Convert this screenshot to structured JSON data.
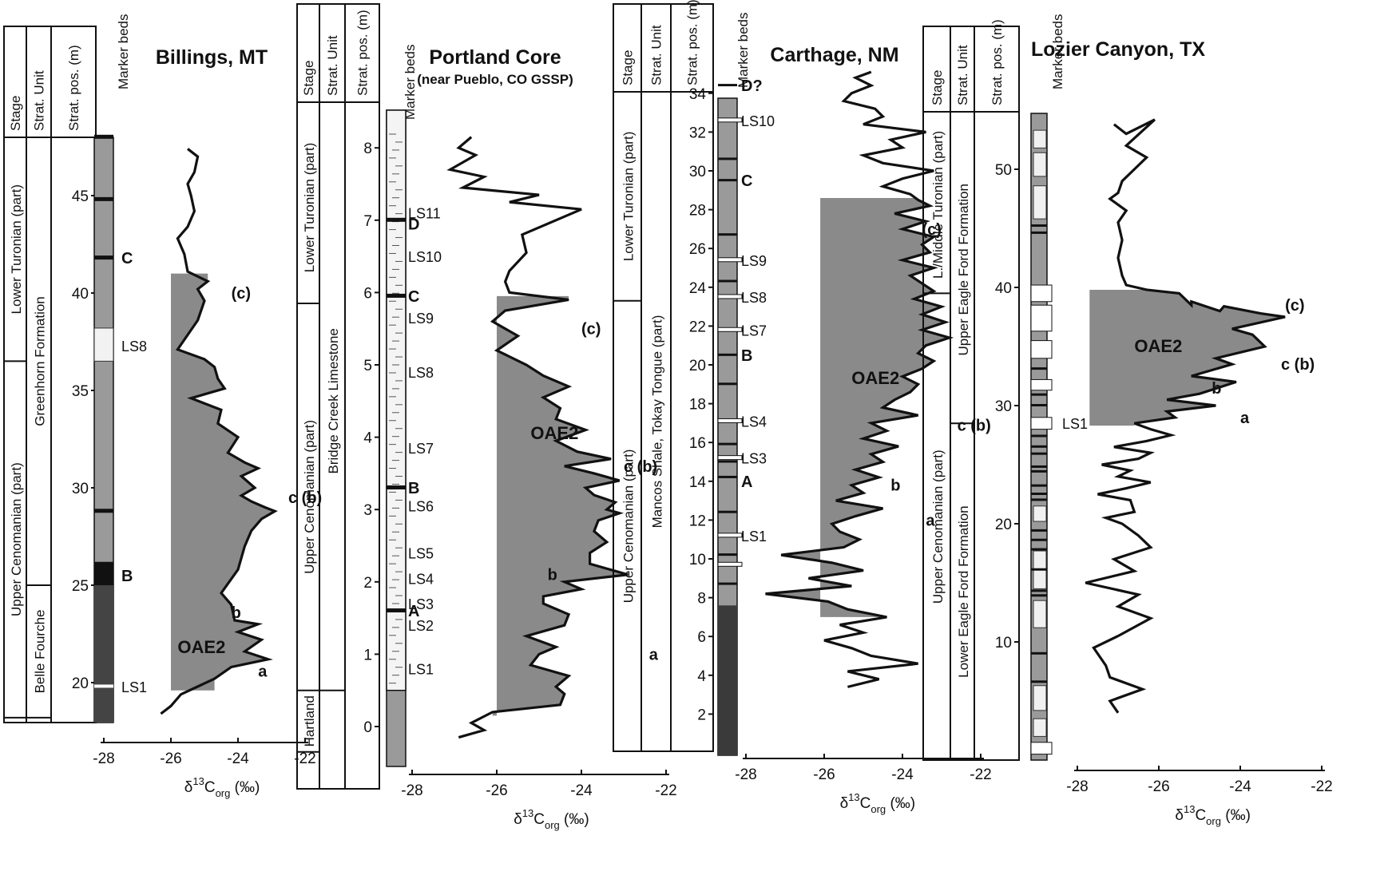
{
  "labels": {
    "stage": "Stage",
    "strat_unit": "Strat. Unit",
    "strat_pos": "Strat. pos. (m)",
    "marker_beds": "Marker beds",
    "xlabel_delta": "δ",
    "xlabel_sup": "13",
    "xlabel_c": "C",
    "xlabel_sub": "org",
    "xlabel_unit": " (‰)"
  },
  "chart_data": [
    {
      "type": "line",
      "title": "Billings, MT",
      "subtitle": "",
      "xlim": [
        -28,
        -22
      ],
      "xticks": [
        "-28",
        "-26",
        "-24",
        "-22"
      ],
      "ylim": [
        18.2,
        48.2
      ],
      "yticks": [
        "20",
        "25",
        "30",
        "35",
        "40",
        "45"
      ],
      "stages": [
        {
          "label": "Lower Turonian (part)",
          "from": 36.5,
          "to": 48.2
        },
        {
          "label": "Upper Cenomanian (part)",
          "from": 18.2,
          "to": 36.5
        }
      ],
      "units": [
        {
          "label": "Greenhorn Formation",
          "from": 25.0,
          "to": 48.2
        },
        {
          "label": "Belle Fourche",
          "from": 18.2,
          "to": 25.0
        }
      ],
      "markers": [
        {
          "label": "C",
          "y": 41.8,
          "bold": true
        },
        {
          "label": "LS8",
          "y": 37.3,
          "bold": false
        },
        {
          "label": "B",
          "y": 25.5,
          "bold": true
        },
        {
          "label": "LS1",
          "y": 19.8,
          "bold": false
        }
      ],
      "annotations": [
        {
          "label": "(c)",
          "x": -24.2,
          "y": 40.0
        },
        {
          "label": "c (b)",
          "x": -22.5,
          "y": 29.5
        },
        {
          "label": "b",
          "x": -24.2,
          "y": 23.6
        },
        {
          "label": "a",
          "x": -23.4,
          "y": 20.6
        },
        {
          "label": "OAE2",
          "x": -25.8,
          "y": 21.8
        }
      ],
      "oae2_fill": [
        19.6,
        41.0
      ],
      "x": [
        -25.5,
        -25.2,
        -25.3,
        -25.5,
        -25.4,
        -25.3,
        -25.5,
        -25.8,
        -25.6,
        -25.5,
        -24.9,
        -25.2,
        -25.0,
        -25.2,
        -25.8,
        -25.0,
        -24.7,
        -24.6,
        -24.4,
        -25.4,
        -24.5,
        -24.6,
        -24.0,
        -24.3,
        -23.8,
        -23.4,
        -23.9,
        -23.5,
        -23.9,
        -23.6,
        -23.2,
        -22.9,
        -23.3,
        -23.6,
        -23.8,
        -24.0,
        -24.5,
        -24.2,
        -24.1,
        -23.4,
        -24.0,
        -23.3,
        -23.8,
        -23.1,
        -24.2,
        -24.7,
        -25.7,
        -26.0,
        -26.3
      ],
      "y": [
        47.4,
        47.0,
        46.2,
        45.6,
        45.0,
        44.2,
        43.4,
        42.8,
        42.0,
        41.1,
        40.6,
        40.2,
        39.6,
        38.6,
        37.1,
        36.6,
        36.2,
        35.6,
        35.1,
        34.6,
        34.0,
        33.3,
        32.6,
        31.8,
        31.3,
        31.0,
        30.6,
        30.0,
        29.6,
        29.3,
        29.0,
        28.8,
        28.4,
        27.8,
        27.0,
        25.8,
        24.6,
        24.0,
        23.2,
        23.0,
        22.6,
        22.2,
        21.6,
        21.2,
        20.8,
        20.2,
        19.4,
        18.8,
        18.4
      ]
    },
    {
      "type": "line",
      "title": "Portland Core",
      "subtitle": "(near Pueblo, CO GSSP)",
      "xlim": [
        -28,
        -22
      ],
      "xticks": [
        "-28",
        "-26",
        "-24",
        "-22"
      ],
      "ylim": [
        -0.35,
        8.5
      ],
      "yticks": [
        "0",
        "1",
        "2",
        "3",
        "4",
        "5",
        "6",
        "7",
        "8"
      ],
      "stages": [
        {
          "label": "Lower Turonian (part)",
          "from": 5.85,
          "to": 8.5
        },
        {
          "label": "Upper Cenomanian (part)",
          "from": 0.5,
          "to": 5.85
        },
        {
          "label": "Hartland",
          "from": -0.35,
          "to": 0.5
        }
      ],
      "units": [
        {
          "label": "Bridge Creek Limestone",
          "from": 0.5,
          "to": 8.5
        }
      ],
      "markers": [
        {
          "label": "LS11",
          "y": 7.1,
          "bold": false
        },
        {
          "label": "D",
          "y": 6.95,
          "bold": true
        },
        {
          "label": "LS10",
          "y": 6.5,
          "bold": false
        },
        {
          "label": "C",
          "y": 5.95,
          "bold": true
        },
        {
          "label": "LS9",
          "y": 5.65,
          "bold": false
        },
        {
          "label": "LS8",
          "y": 4.9,
          "bold": false
        },
        {
          "label": "LS7",
          "y": 3.85,
          "bold": false
        },
        {
          "label": "B",
          "y": 3.3,
          "bold": true
        },
        {
          "label": "LS6",
          "y": 3.05,
          "bold": false
        },
        {
          "label": "LS5",
          "y": 2.4,
          "bold": false
        },
        {
          "label": "LS4",
          "y": 2.05,
          "bold": false
        },
        {
          "label": "LS3",
          "y": 1.7,
          "bold": false
        },
        {
          "label": "A",
          "y": 1.6,
          "bold": true
        },
        {
          "label": "LS2",
          "y": 1.4,
          "bold": false
        },
        {
          "label": "LS1",
          "y": 0.8,
          "bold": false
        }
      ],
      "annotations": [
        {
          "label": "(c)",
          "x": -24.0,
          "y": 5.5
        },
        {
          "label": "c (b)",
          "x": -23.0,
          "y": 3.6
        },
        {
          "label": "b",
          "x": -24.8,
          "y": 2.1
        },
        {
          "label": "a",
          "x": -22.4,
          "y": 1.0
        },
        {
          "label": "OAE2",
          "x": -25.2,
          "y": 4.05
        }
      ],
      "oae2_fill": [
        0.15,
        5.95
      ],
      "x": [
        -26.6,
        -26.9,
        -26.5,
        -27.1,
        -26.3,
        -26.8,
        -25.0,
        -25.7,
        -24.0,
        -25.4,
        -25.3,
        -25.7,
        -25.8,
        -25.7,
        -24.3,
        -25.8,
        -26.1,
        -25.5,
        -26.0,
        -25.3,
        -24.9,
        -24.3,
        -24.9,
        -24.5,
        -24.6,
        -23.9,
        -24.6,
        -24.1,
        -23.3,
        -24.4,
        -23.7,
        -23.1,
        -23.9,
        -23.7,
        -23.2,
        -23.4,
        -23.1,
        -23.6,
        -23.7,
        -23.4,
        -23.8,
        -23.8,
        -22.9,
        -24.4,
        -24.0,
        -24.9,
        -24.9,
        -24.3,
        -24.4,
        -25.3,
        -24.6,
        -25.0,
        -25.2,
        -24.3,
        -24.6,
        -24.4,
        -24.5,
        -26.1,
        -26.6,
        -26.3,
        -26.9
      ],
      "y": [
        8.15,
        8.0,
        7.9,
        7.7,
        7.6,
        7.45,
        7.35,
        7.25,
        7.15,
        6.8,
        6.55,
        6.3,
        6.15,
        6.0,
        5.9,
        5.75,
        5.6,
        5.4,
        5.2,
        5.0,
        4.85,
        4.7,
        4.55,
        4.4,
        4.25,
        4.1,
        3.95,
        3.8,
        3.7,
        3.6,
        3.5,
        3.4,
        3.3,
        3.2,
        3.1,
        3.0,
        2.95,
        2.85,
        2.7,
        2.55,
        2.4,
        2.25,
        2.1,
        2.0,
        1.9,
        1.8,
        1.7,
        1.55,
        1.4,
        1.25,
        1.1,
        1.0,
        0.85,
        0.7,
        0.55,
        0.45,
        0.3,
        0.2,
        0.05,
        -0.05,
        -0.15
      ]
    },
    {
      "type": "line",
      "title": "Carthage, NM",
      "subtitle": "",
      "xlim": [
        -28,
        -22
      ],
      "xticks": [
        "-28",
        "-26",
        "-24",
        "-22"
      ],
      "ylim": [
        0.0,
        35.5
      ],
      "yticks": [
        "2",
        "4",
        "6",
        "8",
        "10",
        "12",
        "14",
        "16",
        "18",
        "20",
        "22",
        "24",
        "26",
        "28",
        "30",
        "32",
        "34"
      ],
      "stages": [
        {
          "label": "Lower Turonian (part)",
          "from": 23.3,
          "to": 35.5
        },
        {
          "label": "Upper Cenomanian (part)",
          "from": 0.0,
          "to": 23.3
        }
      ],
      "units": [
        {
          "label": "Mancos Shale, Tokay Tongue (part)",
          "from": 0.0,
          "to": 35.5
        }
      ],
      "markers": [
        {
          "label": "D?",
          "y": 34.4,
          "bold": true
        },
        {
          "label": "LS10",
          "y": 32.6,
          "bold": false
        },
        {
          "label": "C",
          "y": 29.5,
          "bold": true
        },
        {
          "label": "LS9",
          "y": 25.4,
          "bold": false
        },
        {
          "label": "LS8",
          "y": 23.5,
          "bold": false
        },
        {
          "label": "LS7",
          "y": 21.8,
          "bold": false
        },
        {
          "label": "B",
          "y": 20.5,
          "bold": true
        },
        {
          "label": "LS4",
          "y": 17.1,
          "bold": false
        },
        {
          "label": "LS3",
          "y": 15.2,
          "bold": false
        },
        {
          "label": "A",
          "y": 14.0,
          "bold": true
        },
        {
          "label": "LS1",
          "y": 11.2,
          "bold": false
        }
      ],
      "annotations": [
        {
          "label": "(c)",
          "x": -23.5,
          "y": 27.0
        },
        {
          "label": "c (b)",
          "x": -22.6,
          "y": 16.9
        },
        {
          "label": "b",
          "x": -24.3,
          "y": 13.8
        },
        {
          "label": "a",
          "x": -23.4,
          "y": 12.0
        },
        {
          "label": "OAE2",
          "x": -25.3,
          "y": 19.3
        }
      ],
      "oae2_fill": [
        7.0,
        28.6
      ],
      "x": [
        -24.8,
        -25.2,
        -24.8,
        -25.3,
        -25.5,
        -24.7,
        -24.5,
        -25.0,
        -23.4,
        -24.3,
        -24.0,
        -25.0,
        -24.5,
        -23.2,
        -24.0,
        -24.5,
        -23.8,
        -23.6,
        -23.3,
        -24.2,
        -23.4,
        -24.0,
        -23.2,
        -23.5,
        -23.3,
        -24.0,
        -23.2,
        -23.8,
        -23.5,
        -23.2,
        -23.7,
        -23.0,
        -23.5,
        -22.9,
        -23.5,
        -22.8,
        -23.4,
        -23.6,
        -23.2,
        -23.5,
        -24.0,
        -23.6,
        -23.8,
        -24.2,
        -24.5,
        -23.6,
        -24.8,
        -24.4,
        -25.0,
        -24.1,
        -24.8,
        -24.5,
        -25.2,
        -24.6,
        -25.3,
        -25.0,
        -25.7,
        -24.5,
        -25.2,
        -25.8,
        -25.6,
        -25.1,
        -25.5,
        -27.1,
        -25.8,
        -25.0,
        -26.4,
        -25.3,
        -27.5,
        -25.9,
        -25.4,
        -24.4,
        -25.6,
        -25.0,
        -26.0,
        -25.3,
        -24.8,
        -23.6,
        -25.4,
        -24.6,
        -25.4
      ],
      "y": [
        35.1,
        34.8,
        34.4,
        34.0,
        33.6,
        33.2,
        32.8,
        32.4,
        32.0,
        31.6,
        31.2,
        30.8,
        30.4,
        30.0,
        29.6,
        29.2,
        28.8,
        28.5,
        28.2,
        27.8,
        27.4,
        27.0,
        26.6,
        26.2,
        25.8,
        25.4,
        25.0,
        24.6,
        24.2,
        23.8,
        23.4,
        23.0,
        22.6,
        22.2,
        21.8,
        21.4,
        21.0,
        20.6,
        20.2,
        19.8,
        19.4,
        19.0,
        18.6,
        18.2,
        17.8,
        17.4,
        17.0,
        16.6,
        16.2,
        15.8,
        15.4,
        15.0,
        14.6,
        14.2,
        13.8,
        13.4,
        13.0,
        12.6,
        12.2,
        11.8,
        11.4,
        11.0,
        10.6,
        10.2,
        9.8,
        9.4,
        9.0,
        8.6,
        8.2,
        7.8,
        7.4,
        7.0,
        6.6,
        6.2,
        5.8,
        5.4,
        5.0,
        4.6,
        4.2,
        3.8,
        3.4
      ]
    },
    {
      "type": "line",
      "title": "Lozier Canyon, TX",
      "subtitle": "",
      "xlim": [
        -28,
        -22
      ],
      "xticks": [
        "-28",
        "-26",
        "-24",
        "-22"
      ],
      "ylim": [
        0.0,
        54.5
      ],
      "yticks": [
        "10",
        "20",
        "30",
        "40",
        "50"
      ],
      "stages": [
        {
          "label": "L./Middle Turonian (part)",
          "from": 39.5,
          "to": 54.5
        },
        {
          "label": "Upper Cenomanian (part)",
          "from": 0.0,
          "to": 39.5
        }
      ],
      "units": [
        {
          "label": "Upper Eagle Ford Formation",
          "from": 28.5,
          "to": 54.5
        },
        {
          "label": "Lower Eagle Ford Formation",
          "from": 0.0,
          "to": 28.5
        }
      ],
      "markers": [
        {
          "label": "LS1",
          "y": 28.5,
          "bold": false
        }
      ],
      "annotations": [
        {
          "label": "(c)",
          "x": -22.9,
          "y": 38.5
        },
        {
          "label": "c (b)",
          "x": -23.0,
          "y": 33.5
        },
        {
          "label": "b",
          "x": -24.7,
          "y": 31.5
        },
        {
          "label": "a",
          "x": -24.0,
          "y": 29.0
        },
        {
          "label": "OAE2",
          "x": -26.6,
          "y": 35.0
        }
      ],
      "oae2_fill": [
        28.3,
        39.8
      ],
      "x": [
        -27.1,
        -26.8,
        -26.1,
        -26.8,
        -26.3,
        -26.6,
        -26.9,
        -27.0,
        -27.2,
        -26.8,
        -27.0,
        -26.9,
        -27.0,
        -26.9,
        -26.8,
        -26.3,
        -25.5,
        -25.2,
        -25.2,
        -24.5,
        -24.4,
        -23.5,
        -22.9,
        -24.2,
        -23.7,
        -23.4,
        -24.6,
        -24.2,
        -25.2,
        -24.1,
        -25.0,
        -25.8,
        -24.6,
        -25.8,
        -25.6,
        -26.6,
        -26.2,
        -25.7,
        -26.3,
        -27.1,
        -26.2,
        -26.5,
        -27.4,
        -26.7,
        -27.0,
        -26.2,
        -26.8,
        -27.5,
        -26.7,
        -26.6,
        -27.3,
        -26.9,
        -26.5,
        -26.2,
        -27.1,
        -26.6,
        -27.8,
        -26.5,
        -27.0,
        -26.2,
        -27.0,
        -27.6,
        -27.3,
        -27.2,
        -26.4,
        -27.2,
        -27.0
      ],
      "y": [
        53.8,
        53.0,
        54.2,
        52.0,
        51.0,
        50.0,
        49.0,
        48.0,
        47.5,
        46.5,
        45.5,
        44.0,
        42.5,
        41.0,
        40.2,
        39.8,
        39.5,
        38.5,
        38.8,
        38.0,
        38.4,
        37.8,
        37.5,
        36.5,
        36.0,
        35.0,
        34.0,
        33.5,
        32.5,
        32.0,
        31.0,
        30.5,
        30.0,
        29.5,
        29.0,
        28.5,
        28.0,
        27.5,
        27.0,
        26.5,
        26.0,
        25.5,
        25.0,
        24.5,
        24.0,
        23.5,
        23.0,
        22.5,
        22.0,
        21.0,
        20.5,
        20.0,
        19.0,
        18.0,
        17.0,
        16.0,
        15.0,
        14.0,
        13.0,
        12.0,
        10.5,
        9.5,
        8.0,
        7.0,
        6.0,
        5.0,
        4.0
      ]
    }
  ]
}
